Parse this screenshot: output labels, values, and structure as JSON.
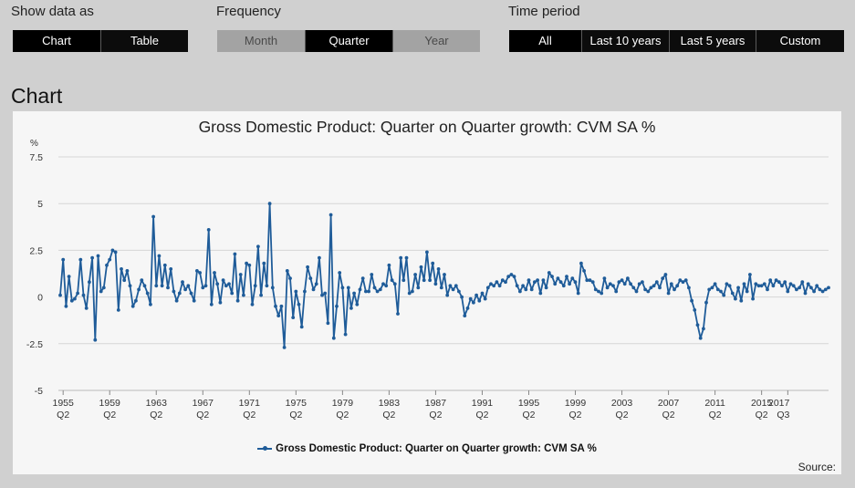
{
  "controls": {
    "show_data_as": {
      "label": "Show data as",
      "options": [
        "Chart",
        "Table"
      ],
      "selected": "Chart"
    },
    "frequency": {
      "label": "Frequency",
      "options": [
        "Month",
        "Quarter",
        "Year"
      ],
      "selected": "Quarter"
    },
    "time_period": {
      "label": "Time period",
      "options": [
        "All",
        "Last 10 years",
        "Last 5 years",
        "Custom"
      ],
      "selected": "All"
    }
  },
  "section_title": "Chart",
  "source_label": "Source:",
  "colors": {
    "series": "#1f5c99",
    "background": "#d0d0d0",
    "panel": "#f6f6f6"
  },
  "chart_data": {
    "type": "line",
    "title": "Gross Domestic Product: Quarter on Quarter growth: CVM SA %",
    "ylabel": "%",
    "ylim": [
      -5,
      7.5
    ],
    "yticks": [
      "7.5",
      "5",
      "2.5",
      "0",
      "-2.5",
      "-5"
    ],
    "xticks": [
      {
        "year": "1955",
        "q": "Q2"
      },
      {
        "year": "1959",
        "q": "Q2"
      },
      {
        "year": "1963",
        "q": "Q2"
      },
      {
        "year": "1967",
        "q": "Q2"
      },
      {
        "year": "1971",
        "q": "Q2"
      },
      {
        "year": "1975",
        "q": "Q2"
      },
      {
        "year": "1979",
        "q": "Q2"
      },
      {
        "year": "1983",
        "q": "Q2"
      },
      {
        "year": "1987",
        "q": "Q2"
      },
      {
        "year": "1991",
        "q": "Q2"
      },
      {
        "year": "1995",
        "q": "Q2"
      },
      {
        "year": "1999",
        "q": "Q2"
      },
      {
        "year": "2003",
        "q": "Q2"
      },
      {
        "year": "2007",
        "q": "Q2"
      },
      {
        "year": "2011",
        "q": "Q2"
      },
      {
        "year": "2015",
        "q": "Q2"
      },
      {
        "year": "2017",
        "q": "Q3"
      }
    ],
    "grid": true,
    "legend_position": "bottom",
    "series": [
      {
        "name": "Gross Domestic Product: Quarter on Quarter growth: CVM SA %",
        "start": "1955 Q1",
        "frequency": "quarterly",
        "values": [
          0.1,
          2.0,
          -0.5,
          1.1,
          -0.2,
          -0.1,
          0.2,
          2.0,
          0.1,
          -0.6,
          0.8,
          2.1,
          -2.3,
          2.2,
          0.3,
          0.5,
          1.7,
          2.0,
          2.5,
          2.4,
          -0.7,
          1.5,
          0.9,
          1.4,
          0.6,
          -0.5,
          -0.2,
          0.4,
          0.9,
          0.6,
          0.2,
          -0.4,
          4.3,
          0.6,
          2.2,
          0.6,
          1.7,
          0.5,
          1.5,
          0.3,
          -0.2,
          0.2,
          0.8,
          0.4,
          0.6,
          0.2,
          -0.2,
          1.4,
          1.3,
          0.5,
          0.6,
          3.6,
          -0.4,
          1.3,
          0.7,
          -0.3,
          0.9,
          0.6,
          0.7,
          0.2,
          2.3,
          -0.2,
          1.2,
          0.1,
          1.8,
          1.7,
          -0.4,
          0.6,
          2.7,
          0.1,
          1.8,
          0.6,
          5.0,
          0.5,
          -0.5,
          -1.0,
          -0.5,
          -2.7,
          1.4,
          1.0,
          -1.1,
          0.3,
          -0.4,
          -1.6,
          0.3,
          1.6,
          1.0,
          0.4,
          0.7,
          2.1,
          0.1,
          0.2,
          -1.4,
          4.4,
          -2.2,
          -0.5,
          1.3,
          0.5,
          -2.0,
          0.5,
          -0.6,
          0.2,
          -0.4,
          0.4,
          1.0,
          0.3,
          0.3,
          1.2,
          0.5,
          0.3,
          0.4,
          0.7,
          0.6,
          1.7,
          0.9,
          0.7,
          -0.9,
          2.1,
          0.9,
          2.1,
          0.2,
          0.3,
          1.2,
          0.5,
          1.6,
          0.9,
          2.4,
          0.9,
          1.8,
          0.7,
          1.5,
          0.5,
          1.2,
          0.1,
          0.6,
          0.4,
          0.6,
          0.3,
          0.0,
          -1.0,
          -0.6,
          -0.1,
          -0.3,
          0.1,
          -0.2,
          0.2,
          -0.1,
          0.5,
          0.7,
          0.6,
          0.8,
          0.6,
          0.9,
          0.8,
          1.1,
          1.2,
          1.1,
          0.6,
          0.3,
          0.6,
          0.4,
          0.9,
          0.4,
          0.8,
          0.9,
          0.2,
          0.9,
          0.5,
          1.3,
          1.1,
          0.7,
          1.0,
          0.8,
          0.6,
          1.1,
          0.7,
          1.0,
          0.8,
          0.2,
          1.8,
          1.4,
          0.9,
          0.9,
          0.8,
          0.4,
          0.3,
          0.2,
          1.0,
          0.5,
          0.7,
          0.6,
          0.3,
          0.8,
          0.9,
          0.7,
          1.0,
          0.7,
          0.5,
          0.3,
          0.7,
          0.8,
          0.4,
          0.3,
          0.5,
          0.6,
          0.8,
          0.5,
          1.0,
          1.2,
          0.2,
          0.7,
          0.4,
          0.6,
          0.9,
          0.8,
          0.9,
          0.5,
          -0.2,
          -0.7,
          -1.5,
          -2.2,
          -1.7,
          -0.3,
          0.4,
          0.5,
          0.7,
          0.4,
          0.3,
          0.1,
          0.7,
          0.6,
          0.2,
          -0.1,
          0.5,
          -0.2,
          0.7,
          0.3,
          1.2,
          -0.1,
          0.7,
          0.6,
          0.6,
          0.7,
          0.4,
          0.9,
          0.6,
          0.9,
          0.8,
          0.6,
          0.8,
          0.3,
          0.7,
          0.6,
          0.4,
          0.5,
          0.8,
          0.2,
          0.7,
          0.5,
          0.3,
          0.6,
          0.4,
          0.3,
          0.4,
          0.5
        ]
      }
    ]
  }
}
